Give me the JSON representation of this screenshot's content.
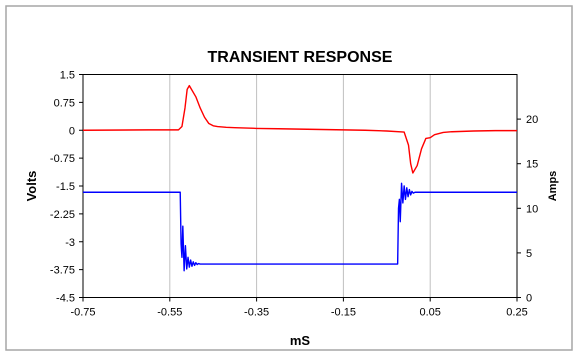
{
  "chart_data": {
    "type": "line",
    "title": "TRANSIENT RESPONSE",
    "xlabel": "mS",
    "ylabel": "Volts",
    "y2label": "Amps",
    "xlim": [
      -0.75,
      0.25
    ],
    "ylim": [
      -4.5,
      1.5
    ],
    "y2lim": [
      0,
      25
    ],
    "x_ticks": [
      "-0.75",
      "-0.55",
      "-0.35",
      "-0.15",
      "0.05",
      "0.25"
    ],
    "y_ticks": [
      "1.5",
      "0.75",
      "0",
      "-0.75",
      "-1.5",
      "-2.25",
      "-3",
      "-3.75",
      "-4.5"
    ],
    "y2_ticks": [
      "20",
      "15",
      "10",
      "5",
      "0"
    ],
    "grid": "vertical",
    "colors": {
      "voltage": "#ff0000",
      "current": "#0000ff",
      "frame": "#a6a6a6"
    },
    "series": [
      {
        "axis": "left",
        "color": "#ff0000",
        "x": [
          -0.75,
          -0.6,
          -0.53,
          -0.522,
          -0.515,
          -0.51,
          -0.505,
          -0.5,
          -0.49,
          -0.48,
          -0.47,
          -0.46,
          -0.45,
          -0.44,
          -0.42,
          -0.4,
          -0.35,
          -0.3,
          -0.25,
          -0.2,
          -0.15,
          -0.1,
          -0.05,
          -0.01,
          0.0,
          0.005,
          0.01,
          0.02,
          0.03,
          0.04,
          0.05,
          0.06,
          0.08,
          0.1,
          0.15,
          0.2,
          0.25
        ],
        "y": [
          0.0,
          0.01,
          0.01,
          0.1,
          0.6,
          1.1,
          1.2,
          1.1,
          0.9,
          0.6,
          0.35,
          0.18,
          0.12,
          0.1,
          0.08,
          0.07,
          0.05,
          0.04,
          0.03,
          0.02,
          0.01,
          0.0,
          -0.02,
          -0.05,
          -0.4,
          -0.9,
          -1.15,
          -0.95,
          -0.5,
          -0.22,
          -0.2,
          -0.12,
          -0.06,
          -0.04,
          -0.02,
          -0.01,
          -0.01
        ]
      },
      {
        "axis": "right",
        "color": "#0000ff",
        "x": [
          -0.75,
          -0.526,
          -0.524,
          -0.522,
          -0.52,
          -0.517,
          -0.514,
          -0.511,
          -0.508,
          -0.505,
          -0.502,
          -0.499,
          -0.496,
          -0.493,
          -0.49,
          -0.487,
          -0.484,
          -0.48,
          -0.47,
          -0.4,
          -0.3,
          -0.2,
          -0.1,
          -0.025,
          -0.023,
          -0.021,
          -0.019,
          -0.016,
          -0.013,
          -0.01,
          -0.007,
          -0.004,
          -0.001,
          0.002,
          0.005,
          0.008,
          0.011,
          0.015,
          0.025,
          0.1,
          0.25
        ],
        "y": [
          11.8,
          11.8,
          6.0,
          4.5,
          8.0,
          3.0,
          5.8,
          3.2,
          4.5,
          3.4,
          4.2,
          3.5,
          4.0,
          3.6,
          3.9,
          3.7,
          3.8,
          3.75,
          3.75,
          3.75,
          3.75,
          3.75,
          3.75,
          3.75,
          10.0,
          11.0,
          8.5,
          12.8,
          10.6,
          12.5,
          11.0,
          12.3,
          11.3,
          12.1,
          11.5,
          11.9,
          11.7,
          11.8,
          11.8,
          11.8,
          11.8
        ]
      }
    ]
  }
}
